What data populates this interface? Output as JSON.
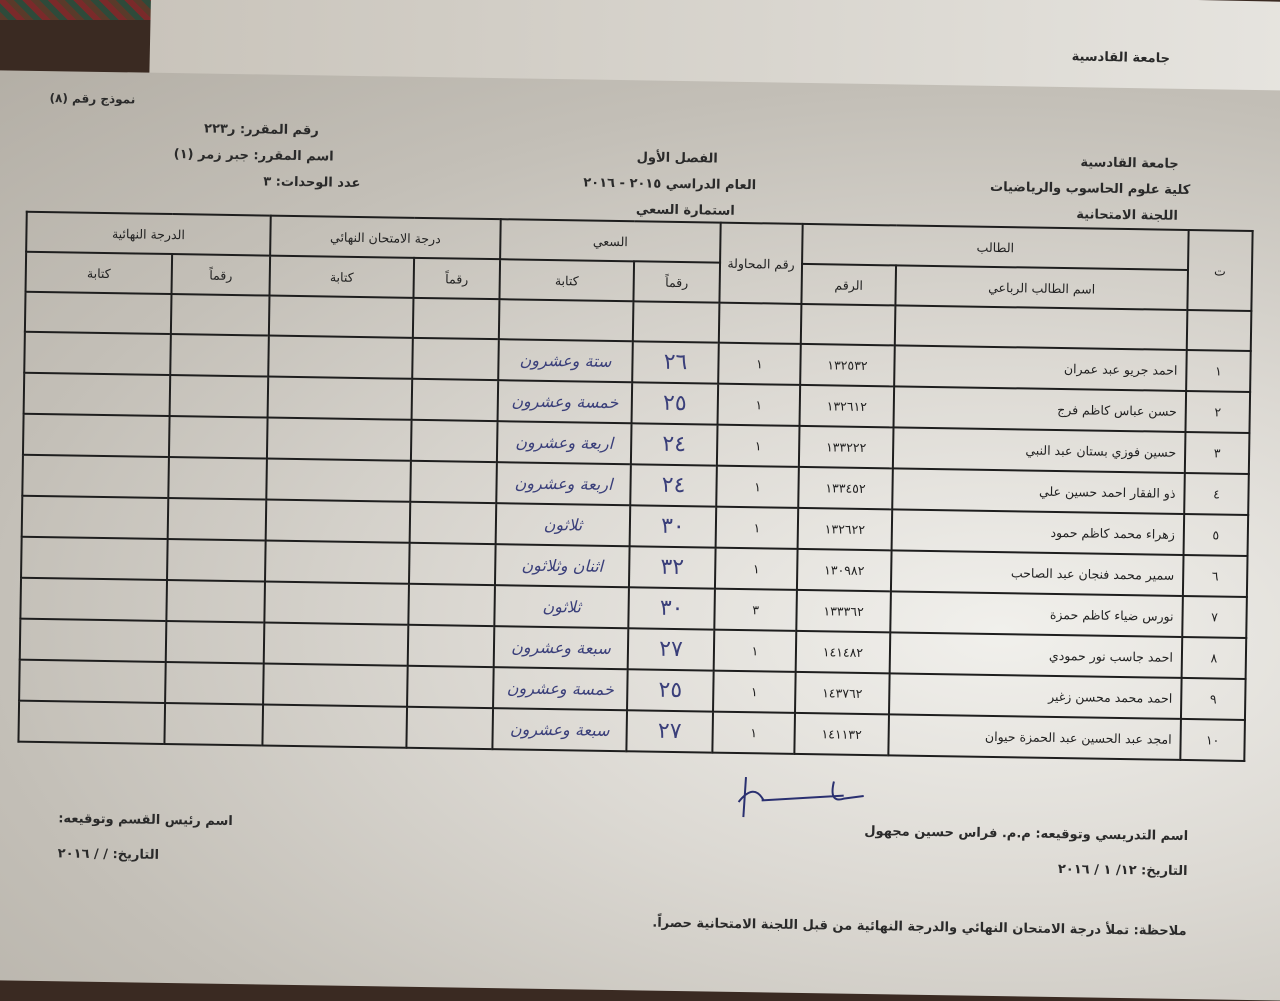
{
  "back_sheet": {
    "university": "جامعة القادسية"
  },
  "form_number": "نموذج رقم (٨)",
  "course": {
    "number": "رقم المقرر: ر٢٢٣",
    "name": "اسم المقرر: جبر زمر (١)",
    "units": "عدد الوحدات: ٣"
  },
  "center": {
    "semester": "الفصل الأول",
    "year": "العام الدراسي ٢٠١٥ - ٢٠١٦",
    "form": "استمارة السعي"
  },
  "institution": {
    "university": "جامعة القادسية",
    "college": "كلية علوم الحاسوب والرياضيات",
    "committee": "اللجنة الامتحانية"
  },
  "table": {
    "headers": {
      "seq": "ت",
      "student": "الطالب",
      "full_name": "اسم الطالب الرباعي",
      "id": "الرقم",
      "attempt": "رقم المحاولة",
      "coursework": "السعي",
      "final_exam": "درجة الامتحان النهائي",
      "final_grade": "الدرجة النهائية",
      "digits": "رقماً",
      "words": "كتابة"
    },
    "rows": [
      {
        "seq": "١",
        "name": "احمد جريو عبد عمران",
        "id": "١٣٢٥٣٢",
        "attempt": "١",
        "cw_digits": "٢٦",
        "cw_words": "ستة وعشرون"
      },
      {
        "seq": "٢",
        "name": "حسن عباس كاظم فرج",
        "id": "١٣٢٦١٢",
        "attempt": "١",
        "cw_digits": "٢٥",
        "cw_words": "خمسة وعشرون"
      },
      {
        "seq": "٣",
        "name": "حسين فوزي بستان عبد النبي",
        "id": "١٣٣٢٢٢",
        "attempt": "١",
        "cw_digits": "٢٤",
        "cw_words": "اربعة وعشرون"
      },
      {
        "seq": "٤",
        "name": "ذو الفقار احمد حسين علي",
        "id": "١٣٣٤٥٢",
        "attempt": "١",
        "cw_digits": "٢٤",
        "cw_words": "اربعة وعشرون"
      },
      {
        "seq": "٥",
        "name": "زهراء محمد كاظم حمود",
        "id": "١٣٢٦٢٢",
        "attempt": "١",
        "cw_digits": "٣٠",
        "cw_words": "ثلاثون"
      },
      {
        "seq": "٦",
        "name": "سمير محمد فنجان عبد الصاحب",
        "id": "١٣٠٩٨٢",
        "attempt": "١",
        "cw_digits": "٣٢",
        "cw_words": "اثنان وثلاثون"
      },
      {
        "seq": "٧",
        "name": "نورس ضياء كاظم حمزة",
        "id": "١٣٣٣٦٢",
        "attempt": "٣",
        "cw_digits": "٣٠",
        "cw_words": "ثلاثون"
      },
      {
        "seq": "٨",
        "name": "احمد جاسب نور حمودي",
        "id": "١٤١٤٨٢",
        "attempt": "١",
        "cw_digits": "٢٧",
        "cw_words": "سبعة وعشرون"
      },
      {
        "seq": "٩",
        "name": "احمد محمد محسن زغير",
        "id": "١٤٣٧٦٢",
        "attempt": "١",
        "cw_digits": "٢٥",
        "cw_words": "خمسة وعشرون"
      },
      {
        "seq": "١٠",
        "name": "امجد عبد الحسين عبد الحمزة حيوان",
        "id": "١٤١١٣٢",
        "attempt": "١",
        "cw_digits": "٢٧",
        "cw_words": "سبعة وعشرون"
      }
    ]
  },
  "footer": {
    "instructor": "اسم التدريسي وتوقيعه: م.م. فراس حسين مجهول",
    "instructor_date": "التاريخ: ١٢/ ١ / ٢٠١٦",
    "head": "اسم رئيس القسم وتوقيعه:",
    "head_date": "التاريخ:    /    / ٢٠١٦",
    "note": "ملاحظة: تملأ درجة الامتحان النهائي والدرجة النهائية من قبل اللجنة الامتحانية حصراً."
  }
}
